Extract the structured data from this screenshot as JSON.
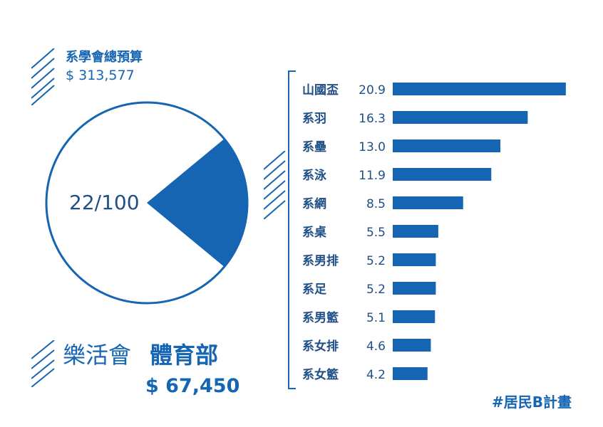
{
  "summary": {
    "title": "系學會總預算",
    "total_amount": "$ 313,577"
  },
  "pie": {
    "label": "22/100",
    "share": 22,
    "total": 100
  },
  "department": {
    "prefix": "樂活會",
    "name": "體育部",
    "amount": "$ 67,450"
  },
  "chart_data": {
    "type": "bar",
    "orientation": "horizontal",
    "categories": [
      "山國盃",
      "系羽",
      "系壘",
      "系泳",
      "系網",
      "系桌",
      "系男排",
      "系足",
      "系男籃",
      "系女排",
      "系女籃"
    ],
    "values": [
      20.9,
      16.3,
      13.0,
      11.9,
      8.5,
      5.5,
      5.2,
      5.2,
      5.1,
      4.6,
      4.2
    ],
    "value_labels": [
      "20.9",
      "16.3",
      "13.0",
      "11.9",
      "8.5",
      "5.5",
      "5.2",
      "5.2",
      "5.1",
      "4.6",
      "4.2"
    ],
    "xlim": [
      0,
      21
    ]
  },
  "footer": {
    "tag": "#居民B計畫"
  },
  "colors": {
    "accent": "#1565b3",
    "text_dark": "#1f4f86"
  }
}
